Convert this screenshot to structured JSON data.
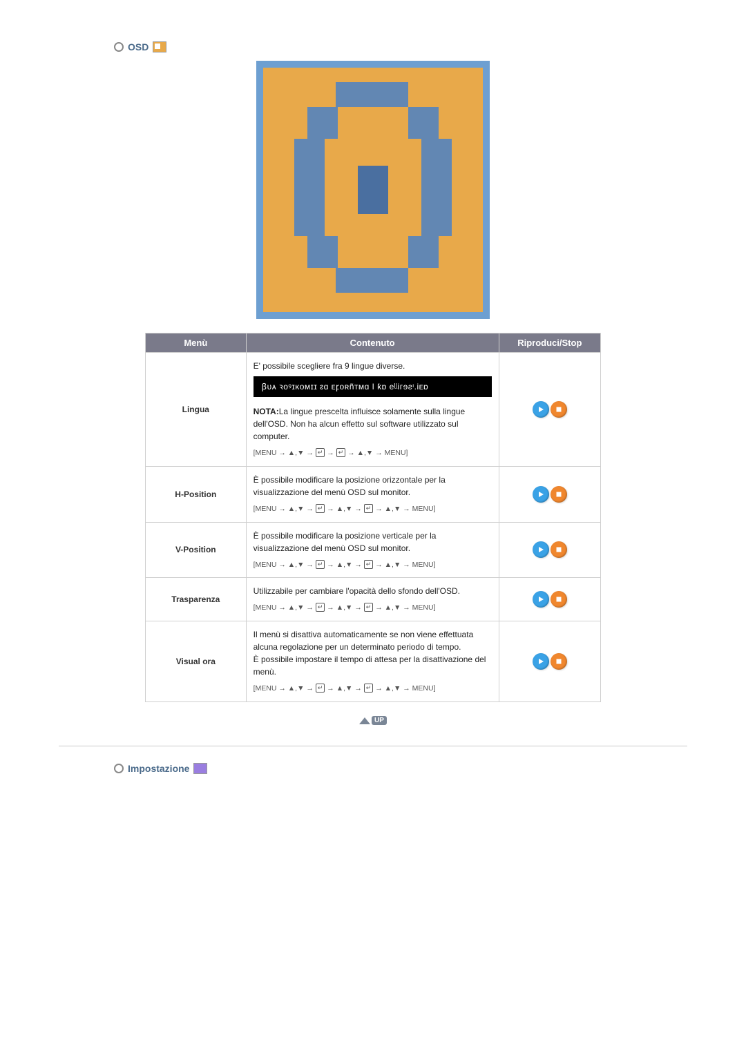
{
  "section_osd": {
    "title": "OSD",
    "preview_bg": "#6d9fd1",
    "preview_fill": "#e8a94a",
    "nav_sequence_basic": "[MENU → ▲,▼ → ↵ → ↵ → ▲,▼ → MENU]",
    "nav_sequence_ext": "[MENU → ▲,▼ → ↵ → ▲,▼ → ↵ → ▲,▼ → MENU]"
  },
  "table": {
    "headers": {
      "menu": "Menù",
      "content": "Contenuto",
      "play": "Riproduci/Stop"
    },
    "colors": {
      "header_bg": "#7a7a8a",
      "play_bg": "#3aa2e6",
      "stop_bg": "#f0872e"
    },
    "rows": [
      {
        "menu": "Lingua",
        "content_intro": "E' possibile scegliere fra 9 lingue diverse.",
        "lang_bar": "ꞵᴜᴀ ꝛᴏꝰɪᴋᴏᴍɪɪ ᴤɑ  ᴇꝼᴏʀñᴛᴍɑ ǀ ƙɒ eᶩᶩiᴦɘƨᶦ.iᴇɒ",
        "note_label": "NOTA:",
        "note_text": "La lingue prescelta influisce solamente sulla lingue dell'OSD. Non ha alcun effetto sul software utilizzato sul computer.",
        "seq": "basic"
      },
      {
        "menu": "H-Position",
        "content_intro": "È possibile modificare la posizione orizzontale per la visualizzazione del menù OSD sul monitor.",
        "seq": "ext"
      },
      {
        "menu": "V-Position",
        "content_intro": "È possibile modificare la posizione verticale per la visualizzazione del menù OSD sul monitor.",
        "seq": "ext"
      },
      {
        "menu": "Trasparenza",
        "content_intro": "Utilizzabile per cambiare l'opacità dello sfondo dell'OSD.",
        "seq": "ext"
      },
      {
        "menu": "Visual ora",
        "content_intro": "Il menù si disattiva automaticamente se non viene effettuata alcuna regolazione per un determinato periodo di tempo.\nÈ possibile impostare il tempo di attesa per la disattivazione del menù.",
        "seq": "ext"
      }
    ]
  },
  "up_button": {
    "label": "UP"
  },
  "section_setup": {
    "title": "Impostazione"
  }
}
